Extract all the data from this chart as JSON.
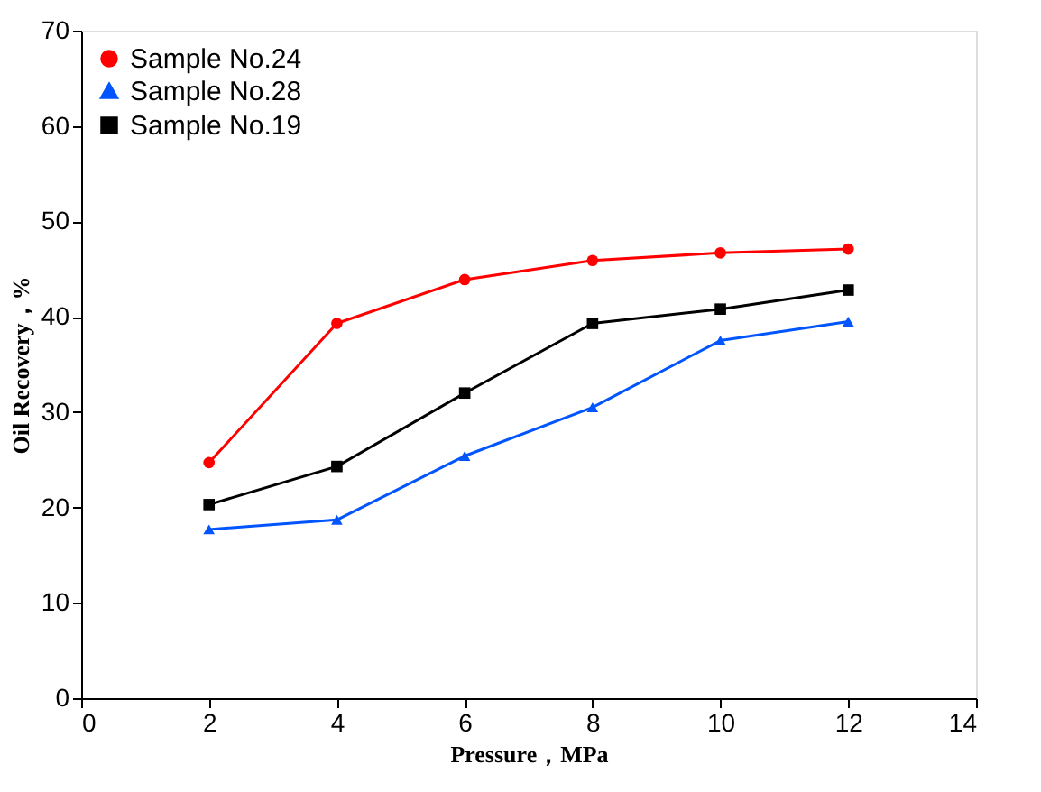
{
  "chart_data": {
    "type": "line",
    "xlabel": "Pressure，MPa",
    "ylabel": "Oil Recovery，%",
    "x": [
      2,
      4,
      6,
      8,
      10,
      12
    ],
    "series": [
      {
        "name": "Sample  No.24",
        "color": "#ff0000",
        "marker": "circle",
        "values": [
          24.7,
          39.3,
          43.9,
          45.9,
          46.7,
          47.1
        ]
      },
      {
        "name": "Sample  No.28",
        "color": "#0055ff",
        "marker": "triangle",
        "values": [
          17.7,
          18.7,
          25.4,
          30.5,
          37.5,
          39.5
        ]
      },
      {
        "name": "Sample  No.19",
        "color": "#000000",
        "marker": "square",
        "values": [
          20.3,
          24.3,
          32.0,
          39.3,
          40.8,
          42.8
        ]
      }
    ],
    "xlim": [
      0,
      14
    ],
    "xticks": [
      0,
      2,
      4,
      6,
      8,
      10,
      12,
      14
    ],
    "ylim": [
      0,
      70
    ],
    "yticks": [
      0,
      10,
      20,
      30,
      40,
      50,
      60,
      70
    ],
    "grid": false,
    "legend": "top left",
    "line_style": "solid"
  }
}
